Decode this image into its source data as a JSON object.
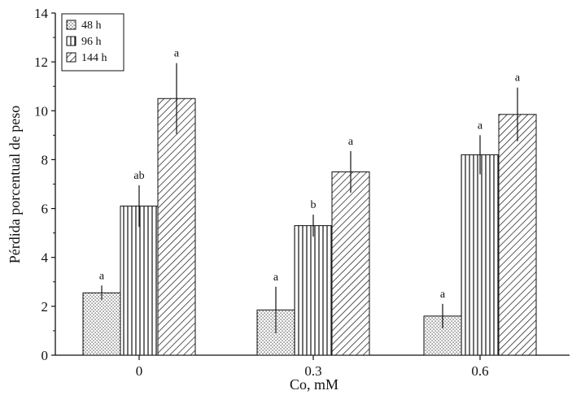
{
  "chart_data": {
    "type": "bar",
    "title": "",
    "xlabel": "Co, mM",
    "ylabel": "Pérdida porcentual de peso",
    "categories": [
      "0",
      "0.3",
      "0.6"
    ],
    "ylim": [
      0,
      14
    ],
    "yticks": [
      "0",
      "2",
      "4",
      "6",
      "8",
      "10",
      "12",
      "14"
    ],
    "legend_position": "top-left",
    "series": [
      {
        "name": "48 h",
        "pattern": "dots",
        "values": [
          2.55,
          1.85,
          1.6
        ],
        "errors": [
          0.3,
          0.95,
          0.5
        ],
        "labels": [
          "a",
          "a",
          "a"
        ]
      },
      {
        "name": "96 h",
        "pattern": "vertical-lines",
        "values": [
          6.1,
          5.3,
          8.2
        ],
        "errors": [
          0.85,
          0.45,
          0.8
        ],
        "labels": [
          "ab",
          "b",
          "a"
        ]
      },
      {
        "name": "144 h",
        "pattern": "diagonal-lines",
        "values": [
          10.5,
          7.5,
          9.85
        ],
        "errors": [
          1.45,
          0.85,
          1.1
        ],
        "labels": [
          "a",
          "a",
          "a"
        ]
      }
    ],
    "colors": {
      "axis": "#111111",
      "bar_fill": "#ffffff",
      "pattern": "#222222"
    }
  }
}
